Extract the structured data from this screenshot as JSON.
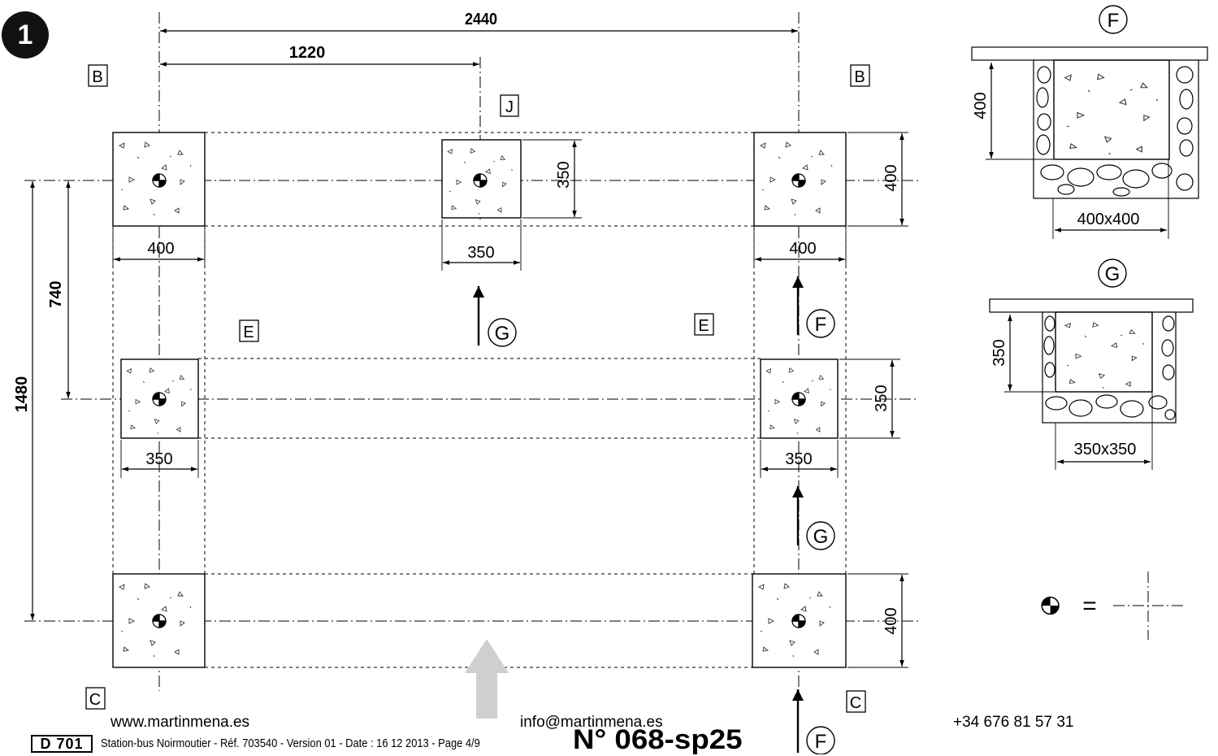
{
  "step_badge": "1",
  "dimensions": {
    "overall_width": "2440",
    "half_width": "1220",
    "overall_depth": "1480",
    "half_depth": "740",
    "front_left_width": "400",
    "front_right_width": "400",
    "front_right_height": "400",
    "middle_top_width": "350",
    "middle_top_height": "350",
    "middle_left_width": "350",
    "middle_right_width": "350",
    "middle_right_height": "350",
    "rear_right_height": "400"
  },
  "labels": {
    "b_left": "B",
    "b_right": "B",
    "j_center": "J",
    "e_left": "E",
    "e_right": "E",
    "c_left": "C",
    "c_right": "C"
  },
  "section_markers": {
    "g_top": "G",
    "f_right": "F",
    "g_right": "G",
    "f_bottom": "F"
  },
  "details": {
    "f_title": "F",
    "f_depth": "400",
    "f_size": "400x400",
    "g_title": "G",
    "g_depth": "350",
    "g_size": "350x350"
  },
  "legend": {
    "equals": "="
  },
  "footer": {
    "website": "www.martinmena.es",
    "email": "info@martinmena.es",
    "phone": "+34 676 81 57 31",
    "code": "D 701",
    "document_line": "Station-bus Noirmoutier - Réf. 703540 - Version 01 - Date : 16 12 2013 - Page 4/9",
    "document_number": "N° 068-sp25"
  }
}
